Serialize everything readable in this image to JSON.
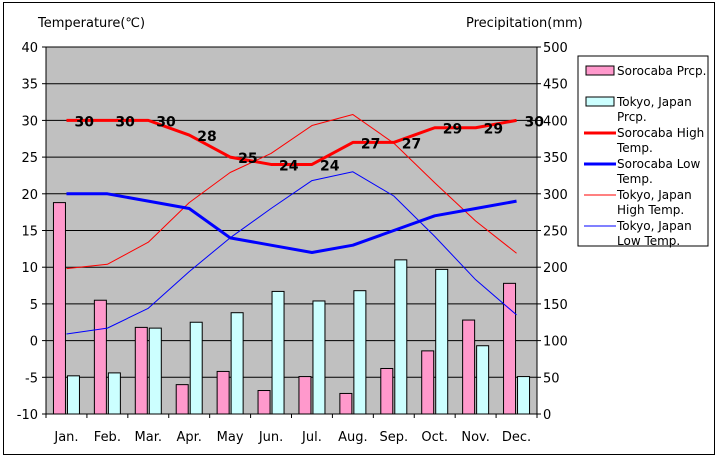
{
  "chart_data": {
    "type": "bar",
    "left_axis_title": "Temperature(℃)",
    "right_axis_title": "Precipitation(mm)",
    "categories": [
      "Jan.",
      "Feb.",
      "Mar.",
      "Apr.",
      "May",
      "Jun.",
      "Jul.",
      "Aug.",
      "Sep.",
      "Oct.",
      "Nov.",
      "Dec."
    ],
    "ylim_left": [
      -10,
      40
    ],
    "y_ticks_left": [
      -10,
      -5,
      0,
      5,
      10,
      15,
      20,
      25,
      30,
      35,
      40
    ],
    "ylim_right": [
      0,
      500
    ],
    "y_ticks_right": [
      0,
      50,
      100,
      150,
      200,
      250,
      300,
      350,
      400,
      450,
      500
    ],
    "grid": true,
    "plot_background": "#c0c0c0",
    "legend_position": "right",
    "bar_series": [
      {
        "name": "Sorocaba Prcp.",
        "color": "#ff99cc",
        "axis": "right",
        "values": [
          288,
          155,
          118,
          40,
          58,
          32,
          51,
          28,
          62,
          86,
          128,
          178
        ]
      },
      {
        "name": "Tokyo, Japan Prcp.",
        "color": "#ccffff",
        "axis": "right",
        "values": [
          52,
          56,
          117,
          125,
          138,
          167,
          154,
          168,
          210,
          197,
          93,
          51
        ]
      }
    ],
    "line_series": [
      {
        "name": "Sorocaba High Temp.",
        "color": "#ff0000",
        "width": 3,
        "axis": "left",
        "values": [
          30,
          30,
          30,
          28,
          25,
          24,
          24,
          27,
          27,
          29,
          29,
          30
        ],
        "show_labels": true
      },
      {
        "name": "Sorocaba Low Temp.",
        "color": "#0000ff",
        "width": 3,
        "axis": "left",
        "values": [
          20,
          20,
          19,
          18,
          14,
          13,
          12,
          13,
          15,
          17,
          18,
          19
        ],
        "show_labels": false
      },
      {
        "name": "Tokyo, Japan High Temp.",
        "color": "#ff0000",
        "width": 1,
        "axis": "left",
        "values": [
          9.8,
          10.4,
          13.4,
          18.8,
          22.9,
          25.5,
          29.3,
          30.8,
          26.9,
          21.5,
          16.3,
          11.9
        ],
        "show_labels": false
      },
      {
        "name": "Tokyo, Japan Low Temp.",
        "color": "#0000ff",
        "width": 1,
        "axis": "left",
        "values": [
          0.9,
          1.7,
          4.4,
          9.4,
          14.0,
          18.0,
          21.8,
          23.0,
          19.7,
          14.2,
          8.3,
          3.5
        ],
        "show_labels": false
      }
    ],
    "legend_entries": [
      {
        "text": "Sorocaba Prcp.",
        "series": "bar0"
      },
      {
        "text": "Tokyo, Japan Prcp.",
        "series": "bar1"
      },
      {
        "text": "Sorocaba High Temp.",
        "series": "line0"
      },
      {
        "text": "Sorocaba Low Temp.",
        "series": "line1"
      },
      {
        "text": "Tokyo, Japan High Temp.",
        "series": "line2"
      },
      {
        "text": "Tokyo, Japan Low Temp.",
        "series": "line3"
      }
    ]
  }
}
